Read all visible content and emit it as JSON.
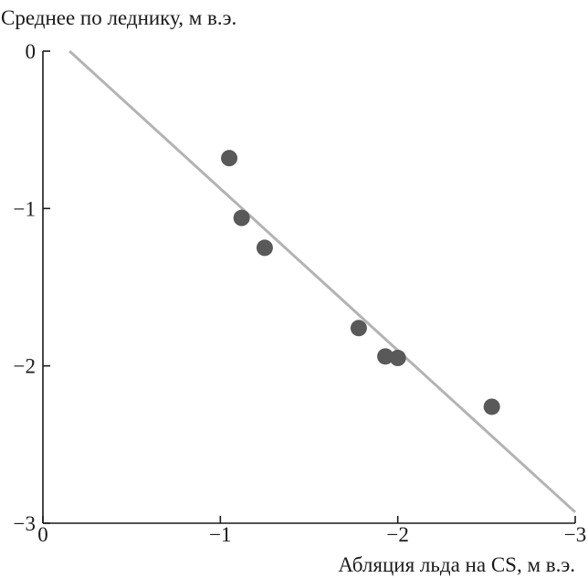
{
  "chart_data": {
    "type": "scatter",
    "title": "",
    "ylabel": "Среднее по леднику, м в.э.",
    "xlabel": "Абляция льда на CS, м в.э.",
    "xlim": [
      0,
      -3
    ],
    "ylim": [
      -3,
      0
    ],
    "x_ticks": [
      0,
      -1,
      -2,
      -3
    ],
    "x_tick_labels": [
      "0",
      "−1",
      "−2",
      "−3"
    ],
    "y_ticks": [
      0,
      -1,
      -2,
      -3
    ],
    "y_tick_labels": [
      "0",
      "−1",
      "−2",
      "−3"
    ],
    "grid": false,
    "points": [
      {
        "x": -1.05,
        "y": -0.68
      },
      {
        "x": -1.12,
        "y": -1.06
      },
      {
        "x": -1.25,
        "y": -1.25
      },
      {
        "x": -1.78,
        "y": -1.76
      },
      {
        "x": -1.93,
        "y": -1.94
      },
      {
        "x": -2.0,
        "y": -1.95
      },
      {
        "x": -2.53,
        "y": -2.26
      }
    ],
    "trendline": {
      "x": [
        -0.15,
        -3.0
      ],
      "y": [
        0.0,
        -2.93
      ]
    },
    "colors": {
      "points": "#595959",
      "trendline": "#b3b3b3",
      "axes": "#1a1a1a"
    }
  }
}
